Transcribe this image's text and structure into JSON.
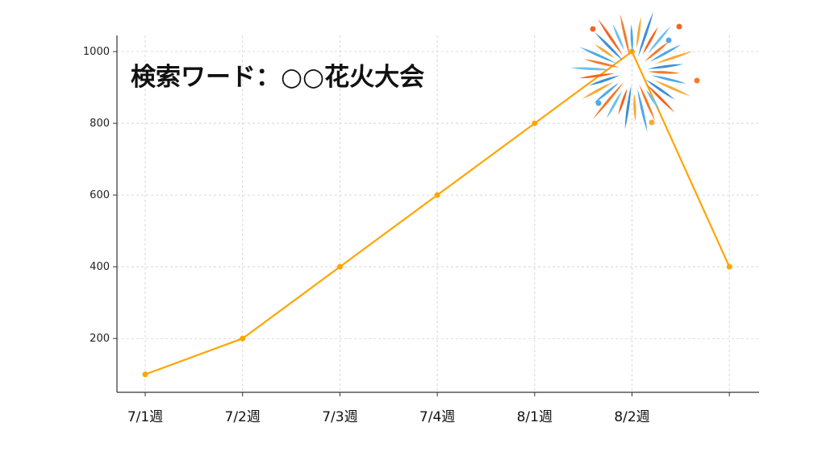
{
  "chart_data": {
    "type": "line",
    "title": "検索ワード：○○花火大会",
    "xlabel": "",
    "ylabel": "",
    "categories": [
      "7/1週",
      "7/2週",
      "7/3週",
      "7/4週",
      "8/1週",
      "8/2週",
      ""
    ],
    "x_tick_labels": [
      "7/1週",
      "7/2週",
      "7/3週",
      "7/4週",
      "8/1週",
      "8/2週"
    ],
    "values": [
      100,
      200,
      400,
      600,
      800,
      1000,
      400
    ],
    "y_ticks": [
      200,
      400,
      600,
      800,
      1000
    ],
    "ylim": [
      50,
      1045
    ],
    "grid": true,
    "line_color": "#FFA500",
    "annotations": [
      {
        "kind": "fireworks-illustration",
        "at_category": "8/2週"
      }
    ]
  }
}
